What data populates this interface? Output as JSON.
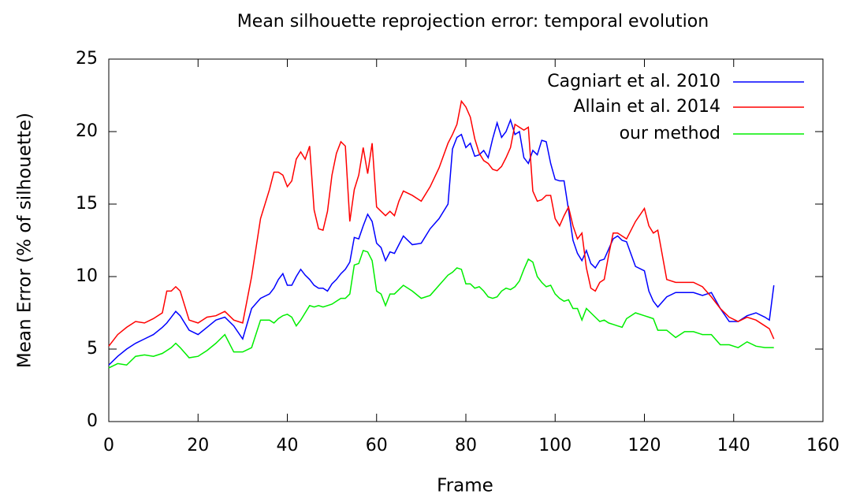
{
  "chart_data": {
    "type": "line",
    "title": "Mean silhouette reprojection error: temporal evolution",
    "x_label": "Frame",
    "y_label": "Mean Error (% of silhouette)",
    "xlim": [
      0,
      160
    ],
    "xticks": [
      0,
      20,
      40,
      60,
      80,
      100,
      120,
      140,
      160
    ],
    "ylim": [
      0,
      25
    ],
    "yticks": [
      0,
      5,
      10,
      15,
      20,
      25
    ],
    "legend": "top-right",
    "x": [
      0,
      2,
      4,
      6,
      8,
      10,
      12,
      13,
      14,
      15,
      16,
      18,
      20,
      22,
      24,
      26,
      28,
      30,
      32,
      34,
      36,
      37,
      38,
      39,
      40,
      41,
      42,
      43,
      44,
      45,
      46,
      47,
      48,
      49,
      50,
      51,
      52,
      53,
      54,
      55,
      56,
      57,
      58,
      59,
      60,
      61,
      62,
      63,
      64,
      65,
      66,
      68,
      70,
      72,
      74,
      76,
      77,
      78,
      79,
      80,
      81,
      82,
      83,
      84,
      85,
      86,
      87,
      88,
      89,
      90,
      91,
      92,
      93,
      94,
      95,
      96,
      97,
      98,
      99,
      100,
      101,
      102,
      103,
      104,
      105,
      106,
      107,
      108,
      109,
      110,
      111,
      112,
      113,
      114,
      115,
      116,
      118,
      120,
      121,
      122,
      123,
      125,
      127,
      129,
      131,
      133,
      135,
      137,
      139,
      141,
      143,
      145,
      147,
      148,
      149
    ],
    "series": [
      {
        "name": "Cagniart et al. 2010",
        "color": "#0000ff",
        "values": [
          3.9,
          4.5,
          5.0,
          5.4,
          5.7,
          6.0,
          6.5,
          6.8,
          7.2,
          7.6,
          7.3,
          6.3,
          6.0,
          6.5,
          7.0,
          7.2,
          6.6,
          5.7,
          7.8,
          8.5,
          8.8,
          9.2,
          9.8,
          10.2,
          9.4,
          9.4,
          10.0,
          10.5,
          10.1,
          9.8,
          9.4,
          9.2,
          9.2,
          9.0,
          9.5,
          9.8,
          10.2,
          10.5,
          11.0,
          12.7,
          12.6,
          13.5,
          14.3,
          13.8,
          12.3,
          12.0,
          11.1,
          11.7,
          11.6,
          12.2,
          12.8,
          12.2,
          12.3,
          13.3,
          14.0,
          15.0,
          18.8,
          19.6,
          19.8,
          18.9,
          19.2,
          18.3,
          18.4,
          18.7,
          18.2,
          19.5,
          20.6,
          19.6,
          20.0,
          20.8,
          19.8,
          20.0,
          18.2,
          17.8,
          18.7,
          18.4,
          19.4,
          19.3,
          17.8,
          16.7,
          16.6,
          16.6,
          14.6,
          12.5,
          11.6,
          11.1,
          11.8,
          10.9,
          10.6,
          11.1,
          11.2,
          11.9,
          12.6,
          12.8,
          12.5,
          12.4,
          10.7,
          10.4,
          9.0,
          8.3,
          7.9,
          8.6,
          8.9,
          8.9,
          8.9,
          8.7,
          8.9,
          7.8,
          6.9,
          6.9,
          7.3,
          7.5,
          7.2,
          7.0,
          9.4
        ]
      },
      {
        "name": "Allain et al. 2014",
        "color": "#ff0000",
        "values": [
          5.2,
          6.0,
          6.5,
          6.9,
          6.8,
          7.1,
          7.5,
          9.0,
          9.0,
          9.3,
          9.0,
          7.0,
          6.8,
          7.2,
          7.3,
          7.6,
          7.0,
          6.8,
          10.0,
          14.0,
          16.0,
          17.2,
          17.2,
          17.0,
          16.2,
          16.6,
          18.1,
          18.6,
          18.1,
          19.0,
          14.6,
          13.3,
          13.2,
          14.5,
          17.0,
          18.5,
          19.3,
          19.0,
          13.8,
          16.0,
          17.0,
          18.9,
          17.1,
          19.2,
          14.8,
          14.5,
          14.2,
          14.5,
          14.2,
          15.2,
          15.9,
          15.6,
          15.2,
          16.2,
          17.5,
          19.2,
          19.8,
          20.5,
          22.1,
          21.7,
          21.0,
          19.5,
          18.5,
          18.0,
          17.8,
          17.4,
          17.3,
          17.6,
          18.2,
          18.9,
          20.5,
          20.3,
          20.1,
          20.3,
          15.9,
          15.2,
          15.3,
          15.6,
          15.6,
          14.0,
          13.5,
          14.2,
          14.8,
          13.5,
          12.6,
          13.0,
          10.6,
          9.2,
          9.0,
          9.6,
          9.8,
          11.5,
          13.0,
          13.0,
          12.8,
          12.6,
          13.8,
          14.7,
          13.5,
          13.0,
          13.2,
          9.8,
          9.6,
          9.6,
          9.6,
          9.3,
          8.6,
          7.8,
          7.2,
          6.9,
          7.2,
          7.0,
          6.6,
          6.4,
          5.7
        ]
      },
      {
        "name": "our method",
        "color": "#00ee00",
        "values": [
          3.7,
          4.0,
          3.9,
          4.5,
          4.6,
          4.5,
          4.7,
          4.9,
          5.1,
          5.4,
          5.1,
          4.4,
          4.5,
          4.9,
          5.4,
          6.0,
          4.8,
          4.8,
          5.1,
          7.0,
          7.0,
          6.8,
          7.1,
          7.3,
          7.4,
          7.2,
          6.6,
          7.0,
          7.5,
          8.0,
          7.9,
          8.0,
          7.9,
          8.0,
          8.1,
          8.3,
          8.5,
          8.5,
          8.8,
          10.8,
          10.9,
          11.8,
          11.7,
          11.1,
          9.0,
          8.8,
          8.0,
          8.8,
          8.8,
          9.1,
          9.4,
          9.0,
          8.5,
          8.7,
          9.4,
          10.1,
          10.3,
          10.6,
          10.5,
          9.5,
          9.5,
          9.2,
          9.3,
          9.0,
          8.6,
          8.5,
          8.6,
          9.0,
          9.2,
          9.1,
          9.3,
          9.7,
          10.5,
          11.2,
          11.0,
          10.0,
          9.6,
          9.3,
          9.4,
          8.8,
          8.5,
          8.3,
          8.4,
          7.8,
          7.8,
          7.0,
          7.8,
          7.5,
          7.2,
          6.9,
          7.0,
          6.8,
          6.7,
          6.6,
          6.5,
          7.1,
          7.5,
          7.3,
          7.2,
          7.1,
          6.3,
          6.3,
          5.8,
          6.2,
          6.2,
          6.0,
          6.0,
          5.3,
          5.3,
          5.1,
          5.5,
          5.2,
          5.1,
          5.1,
          5.1
        ]
      }
    ]
  }
}
